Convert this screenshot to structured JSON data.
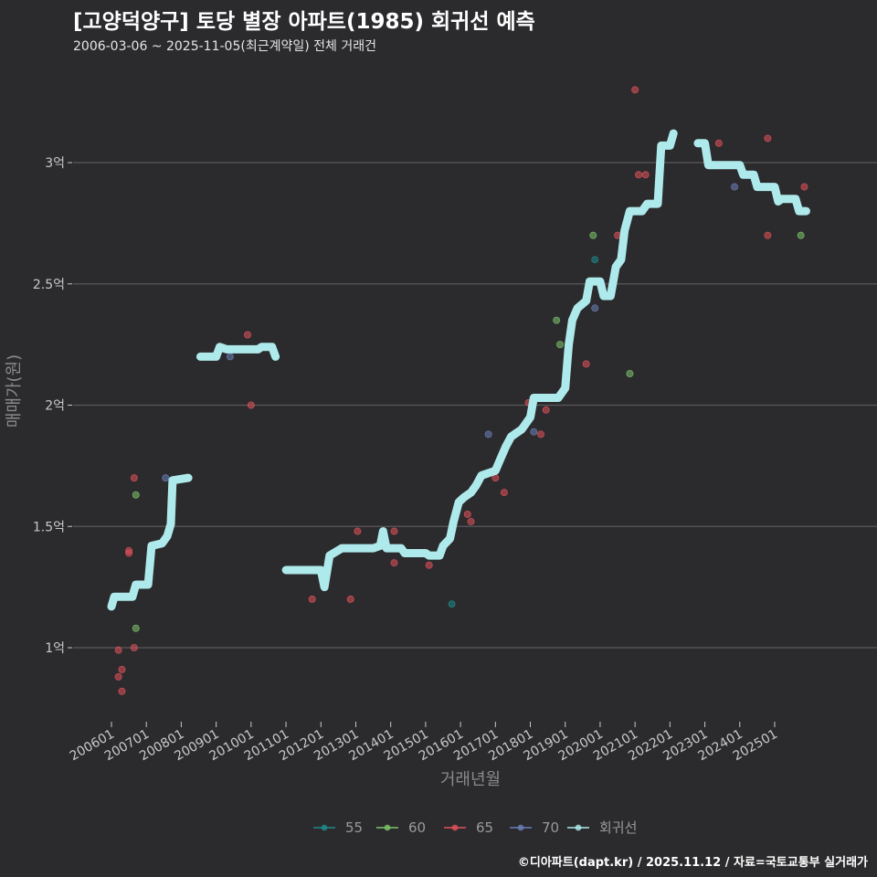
{
  "chart_data": {
    "type": "scatter",
    "title": "[고양덕양구] 토당 별장 아파트(1985) 회귀선 예측",
    "subtitle": "2006-03-06 ~ 2025-11-05(최근계약일) 전체 거래건",
    "xlabel": "거래년월",
    "ylabel": "매매가(원)",
    "caption": "©디아파트(dapt.kr) / 2025.11.12 / 자료=국토교통부 실거래가",
    "ylim": [
      0.75,
      3.3
    ],
    "yticks": [
      {
        "v": 1,
        "label": "1억"
      },
      {
        "v": 1.5,
        "label": "1.5억"
      },
      {
        "v": 2,
        "label": "2억"
      },
      {
        "v": 2.5,
        "label": "2.5억"
      },
      {
        "v": 3,
        "label": "3억"
      }
    ],
    "xlim": [
      2005.92,
      2026.05
    ],
    "xticks": [
      {
        "v": 2006.0,
        "label": "200601"
      },
      {
        "v": 2007.0,
        "label": "200701"
      },
      {
        "v": 2008.0,
        "label": "200801"
      },
      {
        "v": 2009.0,
        "label": "200901"
      },
      {
        "v": 2010.0,
        "label": "201001"
      },
      {
        "v": 2011.0,
        "label": "201101"
      },
      {
        "v": 2012.0,
        "label": "201201"
      },
      {
        "v": 2013.0,
        "label": "201301"
      },
      {
        "v": 2014.0,
        "label": "201401"
      },
      {
        "v": 2015.0,
        "label": "201501"
      },
      {
        "v": 2016.0,
        "label": "201601"
      },
      {
        "v": 2017.0,
        "label": "201701"
      },
      {
        "v": 2018.0,
        "label": "201801"
      },
      {
        "v": 2019.0,
        "label": "201901"
      },
      {
        "v": 2020.0,
        "label": "202001"
      },
      {
        "v": 2021.0,
        "label": "202101"
      },
      {
        "v": 2022.0,
        "label": "202201"
      },
      {
        "v": 2023.0,
        "label": "202301"
      },
      {
        "v": 2024.0,
        "label": "202401"
      },
      {
        "v": 2025.0,
        "label": "202501"
      }
    ],
    "legend_position": "bottom",
    "series": [
      {
        "name": "55",
        "color": "#1f8a8a",
        "points": [
          [
            2015.75,
            1.18
          ],
          [
            2019.85,
            2.6
          ]
        ]
      },
      {
        "name": "60",
        "color": "#7dc46a",
        "points": [
          [
            2006.7,
            1.63
          ],
          [
            2006.7,
            1.08
          ],
          [
            2018.75,
            2.35
          ],
          [
            2018.85,
            2.25
          ],
          [
            2019.8,
            2.7
          ],
          [
            2020.85,
            2.13
          ],
          [
            2025.75,
            2.7
          ]
        ]
      },
      {
        "name": "65",
        "color": "#e0525a",
        "points": [
          [
            2006.2,
            0.99
          ],
          [
            2006.2,
            0.88
          ],
          [
            2006.3,
            0.91
          ],
          [
            2006.3,
            0.82
          ],
          [
            2006.5,
            1.4
          ],
          [
            2006.5,
            1.39
          ],
          [
            2006.65,
            1.7
          ],
          [
            2006.65,
            1.0
          ],
          [
            2009.9,
            2.29
          ],
          [
            2010.0,
            2.0
          ],
          [
            2011.75,
            1.2
          ],
          [
            2012.85,
            1.2
          ],
          [
            2013.05,
            1.48
          ],
          [
            2014.1,
            1.48
          ],
          [
            2014.1,
            1.35
          ],
          [
            2015.1,
            1.34
          ],
          [
            2016.2,
            1.55
          ],
          [
            2016.3,
            1.52
          ],
          [
            2017.0,
            1.7
          ],
          [
            2017.25,
            1.64
          ],
          [
            2017.95,
            2.01
          ],
          [
            2018.3,
            1.88
          ],
          [
            2018.45,
            1.98
          ],
          [
            2019.6,
            2.17
          ],
          [
            2020.5,
            2.7
          ],
          [
            2021.1,
            2.95
          ],
          [
            2021.3,
            2.95
          ],
          [
            2021.0,
            3.3
          ],
          [
            2023.4,
            3.08
          ],
          [
            2024.8,
            3.1
          ],
          [
            2024.8,
            2.7
          ],
          [
            2025.85,
            2.9
          ]
        ]
      },
      {
        "name": "70",
        "color": "#6b80b8",
        "points": [
          [
            2007.55,
            1.7
          ],
          [
            2009.4,
            2.2
          ],
          [
            2016.8,
            1.88
          ],
          [
            2018.1,
            1.89
          ],
          [
            2019.85,
            2.4
          ],
          [
            2023.85,
            2.9
          ]
        ]
      }
    ],
    "regression": {
      "name": "회귀선",
      "color": "#aeeaec",
      "segments": [
        [
          [
            2006.0,
            1.17
          ],
          [
            2006.08,
            1.21
          ],
          [
            2006.6,
            1.21
          ],
          [
            2006.7,
            1.26
          ],
          [
            2007.05,
            1.26
          ],
          [
            2007.15,
            1.42
          ],
          [
            2007.45,
            1.43
          ],
          [
            2007.6,
            1.46
          ],
          [
            2007.7,
            1.51
          ],
          [
            2007.75,
            1.69
          ],
          [
            2008.2,
            1.7
          ]
        ],
        [
          [
            2008.55,
            2.2
          ],
          [
            2009.0,
            2.2
          ],
          [
            2009.1,
            2.24
          ],
          [
            2009.3,
            2.23
          ],
          [
            2010.2,
            2.23
          ],
          [
            2010.3,
            2.24
          ],
          [
            2010.6,
            2.24
          ],
          [
            2010.7,
            2.2
          ]
        ],
        [
          [
            2011.0,
            1.32
          ],
          [
            2012.0,
            1.32
          ],
          [
            2012.1,
            1.25
          ],
          [
            2012.25,
            1.38
          ],
          [
            2012.6,
            1.41
          ],
          [
            2013.5,
            1.41
          ],
          [
            2013.7,
            1.42
          ],
          [
            2013.78,
            1.48
          ],
          [
            2013.88,
            1.41
          ],
          [
            2014.3,
            1.41
          ],
          [
            2014.4,
            1.39
          ],
          [
            2015.0,
            1.39
          ],
          [
            2015.1,
            1.38
          ],
          [
            2015.4,
            1.38
          ],
          [
            2015.5,
            1.42
          ],
          [
            2015.7,
            1.45
          ],
          [
            2015.8,
            1.52
          ],
          [
            2015.95,
            1.6
          ],
          [
            2016.1,
            1.62
          ],
          [
            2016.3,
            1.64
          ],
          [
            2016.45,
            1.67
          ],
          [
            2016.6,
            1.71
          ],
          [
            2017.0,
            1.73
          ],
          [
            2017.15,
            1.78
          ],
          [
            2017.3,
            1.83
          ],
          [
            2017.45,
            1.87
          ],
          [
            2017.75,
            1.9
          ],
          [
            2018.0,
            1.95
          ],
          [
            2018.1,
            2.03
          ],
          [
            2018.8,
            2.03
          ],
          [
            2019.0,
            2.07
          ],
          [
            2019.1,
            2.25
          ],
          [
            2019.2,
            2.35
          ],
          [
            2019.35,
            2.4
          ],
          [
            2019.6,
            2.43
          ],
          [
            2019.7,
            2.51
          ],
          [
            2020.0,
            2.51
          ],
          [
            2020.1,
            2.45
          ],
          [
            2020.3,
            2.45
          ],
          [
            2020.45,
            2.57
          ],
          [
            2020.6,
            2.6
          ],
          [
            2020.7,
            2.72
          ],
          [
            2020.85,
            2.8
          ],
          [
            2021.2,
            2.8
          ],
          [
            2021.35,
            2.83
          ],
          [
            2021.65,
            2.83
          ],
          [
            2021.75,
            3.07
          ],
          [
            2022.0,
            3.07
          ],
          [
            2022.1,
            3.12
          ]
        ],
        [
          [
            2022.8,
            3.08
          ],
          [
            2023.0,
            3.08
          ],
          [
            2023.1,
            2.99
          ],
          [
            2024.0,
            2.99
          ],
          [
            2024.1,
            2.95
          ],
          [
            2024.4,
            2.95
          ],
          [
            2024.5,
            2.9
          ],
          [
            2025.0,
            2.9
          ],
          [
            2025.1,
            2.84
          ],
          [
            2025.2,
            2.85
          ],
          [
            2025.6,
            2.85
          ],
          [
            2025.7,
            2.8
          ],
          [
            2025.9,
            2.8
          ]
        ]
      ]
    }
  }
}
